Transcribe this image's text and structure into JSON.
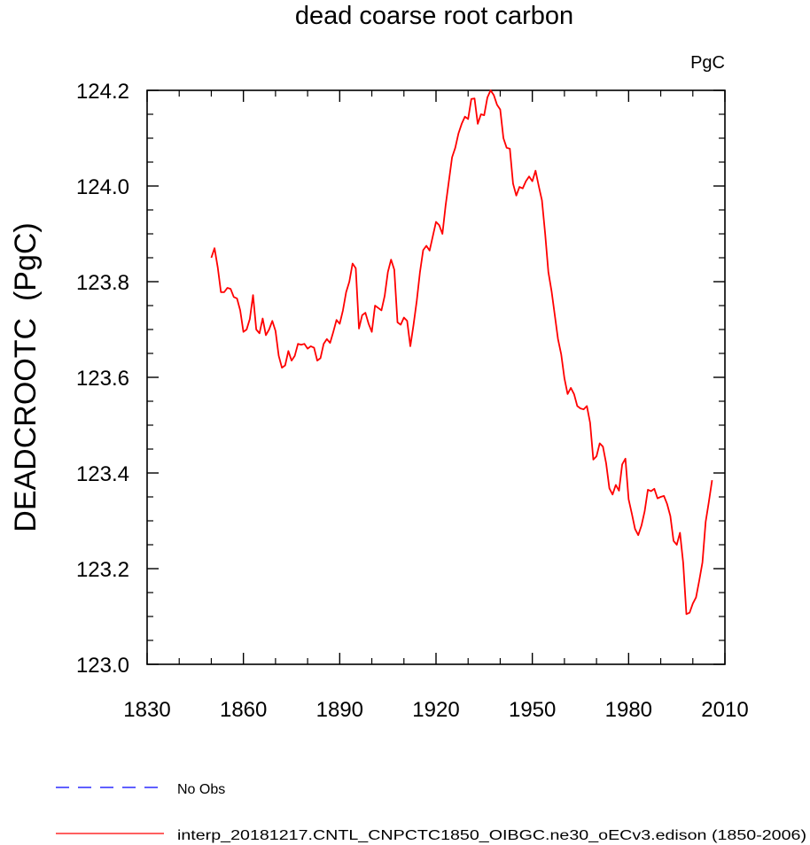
{
  "chart_data": {
    "type": "line",
    "title": "dead coarse root carbon",
    "units_label": "PgC",
    "ylabel": "DEADCROOTC  (PgC)",
    "xlabel": "",
    "xlim": [
      1830,
      2010
    ],
    "ylim": [
      123.0,
      124.2
    ],
    "x_ticks": [
      1830,
      1860,
      1890,
      1920,
      1950,
      1980,
      2010
    ],
    "x_tick_labels": [
      "1830",
      "1860",
      "1890",
      "1920",
      "1950",
      "1980",
      "2010"
    ],
    "y_ticks": [
      123.0,
      123.2,
      123.4,
      123.6,
      123.8,
      124.0,
      124.2
    ],
    "y_tick_labels": [
      "123.0",
      "123.2",
      "123.4",
      "123.6",
      "123.8",
      "124.0",
      "124.2"
    ],
    "grid": false,
    "legend": [
      {
        "label": "No Obs",
        "color": "#0000ff",
        "style": "dashed"
      },
      {
        "label": "interp_20181217.CNTL_CNPCTC1850_OIBGC.ne30_oECv3.edison (1850-2006)",
        "color": "#ff0000",
        "style": "solid"
      }
    ],
    "series": [
      {
        "name": "interp_20181217.CNTL_CNPCTC1850_OIBGC.ne30_oECv3.edison (1850-2006)",
        "color": "#ff0000",
        "x": [
          1850,
          1851,
          1852,
          1853,
          1854,
          1855,
          1856,
          1857,
          1858,
          1859,
          1860,
          1861,
          1862,
          1863,
          1864,
          1865,
          1866,
          1867,
          1868,
          1869,
          1870,
          1871,
          1872,
          1873,
          1874,
          1875,
          1876,
          1877,
          1878,
          1879,
          1880,
          1881,
          1882,
          1883,
          1884,
          1885,
          1886,
          1887,
          1888,
          1889,
          1890,
          1891,
          1892,
          1893,
          1894,
          1895,
          1896,
          1897,
          1898,
          1899,
          1900,
          1901,
          1902,
          1903,
          1904,
          1905,
          1906,
          1907,
          1908,
          1909,
          1910,
          1911,
          1912,
          1913,
          1914,
          1915,
          1916,
          1917,
          1918,
          1919,
          1920,
          1921,
          1922,
          1923,
          1924,
          1925,
          1926,
          1927,
          1928,
          1929,
          1930,
          1931,
          1932,
          1933,
          1934,
          1935,
          1936,
          1937,
          1938,
          1939,
          1940,
          1941,
          1942,
          1943,
          1944,
          1945,
          1946,
          1947,
          1948,
          1949,
          1950,
          1951,
          1952,
          1953,
          1954,
          1955,
          1956,
          1957,
          1958,
          1959,
          1960,
          1961,
          1962,
          1963,
          1964,
          1965,
          1966,
          1967,
          1968,
          1969,
          1970,
          1971,
          1972,
          1973,
          1974,
          1975,
          1976,
          1977,
          1978,
          1979,
          1980,
          1981,
          1982,
          1983,
          1984,
          1985,
          1986,
          1987,
          1988,
          1989,
          1990,
          1991,
          1992,
          1993,
          1994,
          1995,
          1996,
          1997,
          1998,
          1999,
          2000,
          2001,
          2002,
          2003,
          2004,
          2005,
          2006
        ],
        "values": [
          123.85,
          123.87,
          123.83,
          123.778,
          123.778,
          123.787,
          123.785,
          123.768,
          123.765,
          123.74,
          123.695,
          123.7,
          123.722,
          123.772,
          123.7,
          123.692,
          123.723,
          123.688,
          123.7,
          123.718,
          123.697,
          123.645,
          123.62,
          123.625,
          123.655,
          123.635,
          123.645,
          123.67,
          123.668,
          123.67,
          123.66,
          123.665,
          123.662,
          123.635,
          123.64,
          123.67,
          123.68,
          123.672,
          123.695,
          123.72,
          123.712,
          123.74,
          123.778,
          123.8,
          123.838,
          123.828,
          123.702,
          123.73,
          123.735,
          123.712,
          123.695,
          123.75,
          123.745,
          123.74,
          123.77,
          123.82,
          123.846,
          123.825,
          123.715,
          123.71,
          123.725,
          123.718,
          123.665,
          123.71,
          123.76,
          123.82,
          123.866,
          123.875,
          123.865,
          123.895,
          123.925,
          123.918,
          123.9,
          123.96,
          124.01,
          124.06,
          124.08,
          124.11,
          124.13,
          124.145,
          124.14,
          124.182,
          124.183,
          124.13,
          124.15,
          124.148,
          124.185,
          124.2,
          124.19,
          124.17,
          124.16,
          124.1,
          124.08,
          124.078,
          124.005,
          123.98,
          123.998,
          123.995,
          124.01,
          124.02,
          124.01,
          124.032,
          124.0,
          123.97,
          123.9,
          123.82,
          123.78,
          123.73,
          123.68,
          123.648,
          123.598,
          123.565,
          123.578,
          123.565,
          123.54,
          123.535,
          123.533,
          123.54,
          123.505,
          123.428,
          123.435,
          123.462,
          123.455,
          123.42,
          123.368,
          123.355,
          123.375,
          123.363,
          123.418,
          123.43,
          123.345,
          123.315,
          123.283,
          123.27,
          123.29,
          123.32,
          123.365,
          123.362,
          123.367,
          123.347,
          123.35,
          123.352,
          123.335,
          123.31,
          123.258,
          123.25,
          123.275,
          123.212,
          123.105,
          123.108,
          123.127,
          123.14,
          123.175,
          123.213,
          123.298,
          123.34,
          123.385
        ]
      }
    ]
  }
}
